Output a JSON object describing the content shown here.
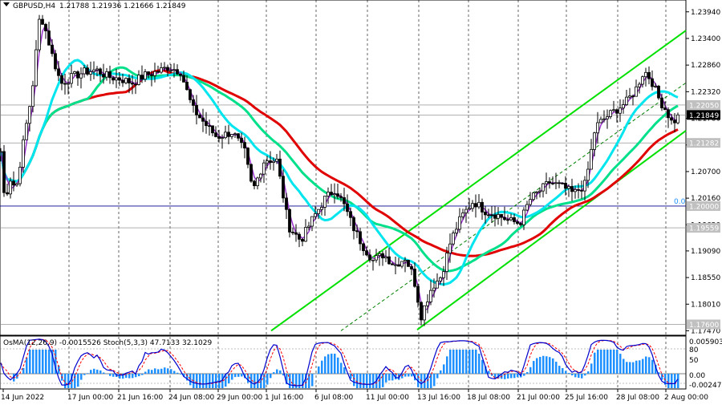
{
  "header": {
    "symbol_label": "GBPUSD,H4",
    "ohlc_label": "1.21788 1.21936 1.21666 1.21849"
  },
  "indicator_header": {
    "label": "OsMA(12,26,9) -0.0015526   Stoch(5,3,3) 47.7133 32.1029"
  },
  "colors": {
    "candle": "#000000",
    "ma_fast": "#9932cc",
    "ma_cyan": "#00e5ee",
    "ma_green": "#00e08a",
    "ma_red": "#e00000",
    "channel": "#00e000",
    "histogram": "#1e90ff",
    "stoch_main": "#0000cd",
    "stoch_signal": "#ff0000",
    "grid": "#000000",
    "price_tag_bg": "#000000",
    "level_tag_bg": "#c0c0c0"
  },
  "chart_data": {
    "type": "line",
    "instrument": "GBPUSD",
    "timeframe": "H4",
    "y_axis_ticks": [
      "1.23940",
      "1.23400",
      "1.22860",
      "1.22320",
      "1.21780",
      "1.21240",
      "1.20700",
      "1.20160",
      "1.19620",
      "1.19090",
      "1.18550",
      "1.18010",
      "1.17470"
    ],
    "y_tick_values": [
      1.2394,
      1.234,
      1.2286,
      1.2232,
      1.2178,
      1.2124,
      1.207,
      1.2016,
      1.1962,
      1.1909,
      1.1855,
      1.1801,
      1.1747
    ],
    "ylim": [
      1.1738,
      1.2418
    ],
    "x_axis_ticks": [
      "14 Jun 2022",
      "17 Jun 00:00",
      "21 Jun 16:00",
      "24 Jun 08:00",
      "29 Jun 00:00",
      "1 Jul 16:00",
      "6 Jul 08:00",
      "11 Jul 00:00",
      "13 Jul 16:00",
      "18 Jul 08:00",
      "21 Jul 00:00",
      "25 Jul 16:00",
      "28 Jul 08:00",
      "2 Aug 00:00"
    ],
    "price_levels": [
      {
        "label": "1.22050",
        "value": 1.2205,
        "style": "gray"
      },
      {
        "label": "1.21849",
        "value": 1.21849,
        "style": "current"
      },
      {
        "label": "1.21282",
        "value": 1.21282,
        "style": "gray"
      },
      {
        "label": "1.20000",
        "value": 1.2,
        "style": "gray"
      },
      {
        "label": "1.19559",
        "value": 1.19559,
        "style": "gray"
      },
      {
        "label": "1.17600",
        "value": 1.176,
        "style": "gray"
      }
    ],
    "fib_label": "0.0",
    "close_path": [
      [
        0,
        1.2132
      ],
      [
        6,
        1.2005
      ],
      [
        12,
        1.2058
      ],
      [
        20,
        1.2035
      ],
      [
        30,
        1.2138
      ],
      [
        40,
        1.2232
      ],
      [
        50,
        1.2392
      ],
      [
        58,
        1.235
      ],
      [
        66,
        1.23
      ],
      [
        76,
        1.2248
      ],
      [
        90,
        1.2262
      ],
      [
        105,
        1.2272
      ],
      [
        120,
        1.2276
      ],
      [
        135,
        1.2262
      ],
      [
        150,
        1.2258
      ],
      [
        165,
        1.225
      ],
      [
        180,
        1.2265
      ],
      [
        195,
        1.2272
      ],
      [
        210,
        1.2282
      ],
      [
        225,
        1.2273
      ],
      [
        240,
        1.2198
      ],
      [
        255,
        1.2168
      ],
      [
        270,
        1.214
      ],
      [
        290,
        1.215
      ],
      [
        305,
        1.211
      ],
      [
        315,
        1.203
      ],
      [
        330,
        1.2095
      ],
      [
        345,
        1.2092
      ],
      [
        360,
        1.1958
      ],
      [
        375,
        1.193
      ],
      [
        390,
        1.1975
      ],
      [
        405,
        1.2015
      ],
      [
        418,
        1.2035
      ],
      [
        430,
        1.1998
      ],
      [
        440,
        1.1958
      ],
      [
        452,
        1.192
      ],
      [
        465,
        1.189
      ],
      [
        478,
        1.1902
      ],
      [
        492,
        1.188
      ],
      [
        505,
        1.1895
      ],
      [
        515,
        1.186
      ],
      [
        525,
        1.1778
      ],
      [
        538,
        1.1835
      ],
      [
        550,
        1.1858
      ],
      [
        562,
        1.193
      ],
      [
        575,
        1.1978
      ],
      [
        590,
        1.201
      ],
      [
        605,
        1.199
      ],
      [
        620,
        1.1982
      ],
      [
        635,
        1.197
      ],
      [
        648,
        1.1965
      ],
      [
        660,
        1.2012
      ],
      [
        672,
        1.203
      ],
      [
        685,
        1.2048
      ],
      [
        700,
        1.204
      ],
      [
        715,
        1.2025
      ],
      [
        730,
        1.2045
      ],
      [
        742,
        1.216
      ],
      [
        755,
        1.218
      ],
      [
        768,
        1.2195
      ],
      [
        780,
        1.221
      ],
      [
        792,
        1.2235
      ],
      [
        803,
        1.2275
      ],
      [
        812,
        1.2255
      ],
      [
        822,
        1.2215
      ],
      [
        830,
        1.2195
      ],
      [
        838,
        1.2168
      ],
      [
        847,
        1.21849
      ]
    ]
  }
}
